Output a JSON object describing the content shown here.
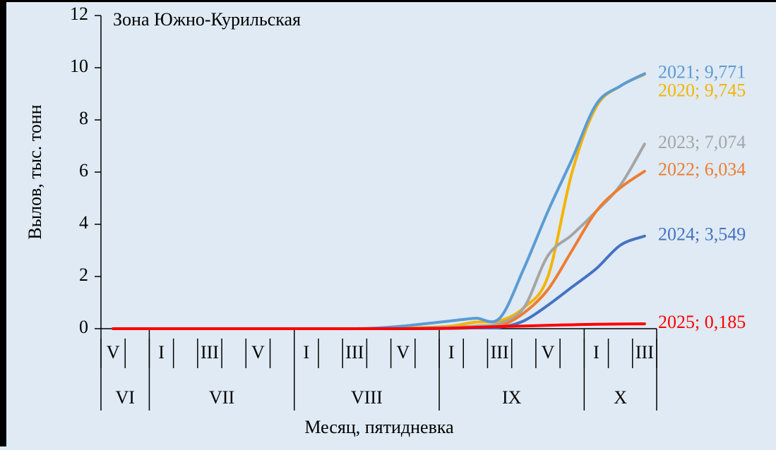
{
  "chart_data": {
    "type": "line",
    "title": "Зона Южно-Курильская",
    "y_label": "Вылов, тыс. тонн",
    "x_label": "Месяц, пятидневка",
    "categories": [
      "V",
      null,
      "I",
      null,
      "III",
      null,
      "V",
      null,
      "I",
      null,
      "III",
      null,
      "V",
      null,
      "I",
      null,
      "III",
      null,
      "V",
      null,
      "I",
      null,
      "III"
    ],
    "month_groups": [
      {
        "label": "VI",
        "span": 2
      },
      {
        "label": "VII",
        "span": 6
      },
      {
        "label": "VIII",
        "span": 6
      },
      {
        "label": "IX",
        "span": 6
      },
      {
        "label": "X",
        "span": 3
      }
    ],
    "ylim": [
      0,
      12
    ],
    "yticks": [
      0,
      2,
      4,
      6,
      8,
      10,
      12
    ],
    "grid": false,
    "series": [
      {
        "name": "2020",
        "color": "#f4b400",
        "values": [
          0,
          0,
          0,
          0,
          0,
          0,
          0,
          0,
          0,
          0,
          0,
          0,
          0.02,
          0.05,
          0.1,
          0.25,
          0.3,
          0.8,
          2.0,
          6.0,
          8.5,
          9.3,
          9.745
        ],
        "value_labels": [
          null,
          null,
          null,
          null,
          null,
          null,
          null,
          null,
          null,
          null,
          null,
          null,
          null,
          null,
          null,
          null,
          null,
          null,
          null,
          null,
          null,
          null,
          "2020; 9,745"
        ]
      },
      {
        "name": "2021",
        "color": "#5b9bd5",
        "values": [
          0,
          0,
          0,
          0,
          0,
          0,
          0,
          0,
          0,
          0,
          0,
          0.03,
          0.1,
          0.2,
          0.3,
          0.4,
          0.4,
          2.3,
          4.5,
          6.5,
          8.6,
          9.3,
          9.771
        ],
        "value_labels": [
          null,
          null,
          null,
          null,
          null,
          null,
          null,
          null,
          null,
          null,
          null,
          null,
          null,
          null,
          null,
          null,
          null,
          null,
          null,
          null,
          null,
          null,
          "2021; 9,771"
        ]
      },
      {
        "name": "2023",
        "color": "#a5a5a5",
        "values": [
          0,
          0,
          0,
          0,
          0,
          0,
          0,
          0,
          0,
          0,
          0,
          0,
          0,
          0.03,
          0.05,
          0.1,
          0.2,
          0.8,
          2.8,
          3.6,
          4.5,
          5.5,
          7.074
        ],
        "value_labels": [
          null,
          null,
          null,
          null,
          null,
          null,
          null,
          null,
          null,
          null,
          null,
          null,
          null,
          null,
          null,
          null,
          null,
          null,
          null,
          null,
          null,
          null,
          "2023; 7,074"
        ]
      },
      {
        "name": "2022",
        "color": "#ed7d31",
        "values": [
          0,
          0,
          0,
          0,
          0,
          0,
          0,
          0,
          0,
          0,
          0,
          0,
          0,
          0,
          0.02,
          0.05,
          0.1,
          0.6,
          1.5,
          3.0,
          4.5,
          5.4,
          6.034
        ],
        "value_labels": [
          null,
          null,
          null,
          null,
          null,
          null,
          null,
          null,
          null,
          null,
          null,
          null,
          null,
          null,
          null,
          null,
          null,
          null,
          null,
          null,
          null,
          null,
          "2022; 6,034"
        ]
      },
      {
        "name": "2024",
        "color": "#4472c4",
        "values": [
          0,
          0,
          0,
          0,
          0,
          0,
          0,
          0,
          0,
          0,
          0,
          0,
          0,
          0,
          0.01,
          0.03,
          0.05,
          0.3,
          0.9,
          1.6,
          2.3,
          3.2,
          3.549
        ],
        "value_labels": [
          null,
          null,
          null,
          null,
          null,
          null,
          null,
          null,
          null,
          null,
          null,
          null,
          null,
          null,
          null,
          null,
          null,
          null,
          null,
          null,
          null,
          null,
          "2024; 3,549"
        ]
      },
      {
        "name": "2025",
        "color": "#ff0000",
        "values": [
          0,
          0,
          0,
          0,
          0,
          0,
          0,
          0,
          0,
          0,
          0,
          0,
          0,
          0.01,
          0.02,
          0.05,
          0.08,
          0.1,
          0.13,
          0.15,
          0.17,
          0.18,
          0.185
        ],
        "value_labels": [
          null,
          null,
          null,
          null,
          null,
          null,
          null,
          null,
          null,
          null,
          null,
          null,
          null,
          null,
          null,
          null,
          null,
          null,
          null,
          null,
          null,
          null,
          "2025; 0,185"
        ]
      }
    ]
  }
}
